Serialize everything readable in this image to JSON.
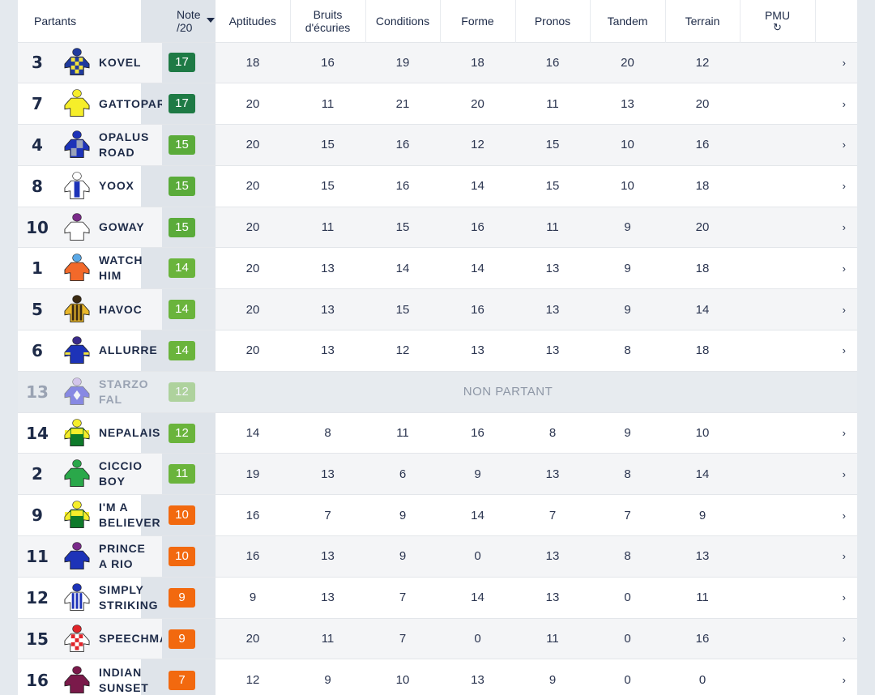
{
  "headers": {
    "partants": "Partants",
    "note_line1": "Note",
    "note_line2": "/20",
    "aptitudes": "Aptitudes",
    "bruits_line1": "Bruits",
    "bruits_line2": "d'écuries",
    "conditions": "Conditions",
    "forme": "Forme",
    "pronos": "Pronos",
    "tandem": "Tandem",
    "terrain": "Terrain",
    "pmu": "PMU"
  },
  "colors": {
    "note_17": "#1e7a45",
    "note_15": "#5aab3a",
    "note_12": "#6ab43c",
    "note_10": "#f2690f",
    "note_7": "#f2690f",
    "note_bg_col": "#dfe4ea"
  },
  "non_partant_label": "NON PARTANT",
  "runners": [
    {
      "num": "3",
      "name1": "KOVEL",
      "name2": "",
      "note": "17",
      "note_color": "#1e7a45",
      "silk": {
        "body": "#1f3a9e",
        "pattern": "check",
        "alt": "#f3e43a",
        "cap": "#1f3a9e"
      },
      "scores": [
        "18",
        "16",
        "19",
        "18",
        "16",
        "20",
        "12"
      ]
    },
    {
      "num": "7",
      "name1": "GATTOPARDO",
      "name2": "",
      "note": "17",
      "note_color": "#1e7a45",
      "silk": {
        "body": "#f6ee2a",
        "pattern": "plain",
        "alt": "#f6ee2a",
        "cap": "#f6ee2a"
      },
      "scores": [
        "20",
        "11",
        "21",
        "20",
        "11",
        "13",
        "20"
      ]
    },
    {
      "num": "4",
      "name1": "OPALUS",
      "name2": "ROAD",
      "note": "15",
      "note_color": "#5aab3a",
      "silk": {
        "body": "#1d33b8",
        "pattern": "quarter",
        "alt": "#9aa3b8",
        "cap": "#1d33b8"
      },
      "scores": [
        "20",
        "15",
        "16",
        "12",
        "15",
        "10",
        "16"
      ]
    },
    {
      "num": "8",
      "name1": "YOOX",
      "name2": "",
      "note": "15",
      "note_color": "#5aab3a",
      "silk": {
        "body": "#ffffff",
        "pattern": "centerstripe",
        "alt": "#1d33b8",
        "cap": "#ffffff"
      },
      "scores": [
        "20",
        "15",
        "16",
        "14",
        "15",
        "10",
        "18"
      ]
    },
    {
      "num": "10",
      "name1": "GOWAY",
      "name2": "",
      "note": "15",
      "note_color": "#5aab3a",
      "silk": {
        "body": "#ffffff",
        "pattern": "plain",
        "alt": "#ffffff",
        "cap": "#7a2a8a"
      },
      "scores": [
        "20",
        "11",
        "15",
        "16",
        "11",
        "9",
        "20"
      ]
    },
    {
      "num": "1",
      "name1": "WATCH",
      "name2": "HIM",
      "note": "14",
      "note_color": "#6ab43c",
      "silk": {
        "body": "#f2692a",
        "pattern": "plain",
        "alt": "#f2692a",
        "cap": "#5aa8e6"
      },
      "scores": [
        "20",
        "13",
        "14",
        "14",
        "13",
        "9",
        "18"
      ]
    },
    {
      "num": "5",
      "name1": "HAVOC",
      "name2": "",
      "note": "14",
      "note_color": "#6ab43c",
      "silk": {
        "body": "#e8b62a",
        "pattern": "vstripes",
        "alt": "#3a2a12",
        "cap": "#3a2a12"
      },
      "scores": [
        "20",
        "13",
        "15",
        "16",
        "13",
        "9",
        "14"
      ]
    },
    {
      "num": "6",
      "name1": "ALLURRE",
      "name2": "",
      "note": "14",
      "note_color": "#6ab43c",
      "silk": {
        "body": "#1d33b8",
        "pattern": "sleevehoop",
        "alt": "#f3e43a",
        "cap": "#3a2a8a"
      },
      "scores": [
        "20",
        "13",
        "12",
        "13",
        "13",
        "8",
        "18"
      ]
    },
    {
      "num": "13",
      "name1": "STARZO",
      "name2": "FAL",
      "note": "12",
      "note_color": "#6ab43c",
      "silk": {
        "body": "#2a2ad8",
        "pattern": "diamond",
        "alt": "#ffffff",
        "cap": "#c0a0e8"
      },
      "non_partant": true,
      "scores": []
    },
    {
      "num": "14",
      "name1": "NEPALAIS",
      "name2": "",
      "note": "12",
      "note_color": "#6ab43c",
      "silk": {
        "body": "#0e7a2a",
        "pattern": "yoke",
        "alt": "#f6ee2a",
        "cap": "#f6ee2a"
      },
      "scores": [
        "14",
        "8",
        "11",
        "16",
        "8",
        "9",
        "10"
      ]
    },
    {
      "num": "2",
      "name1": "CICCIO",
      "name2": "BOY",
      "note": "11",
      "note_color": "#6ab43c",
      "silk": {
        "body": "#2aa84a",
        "pattern": "plain",
        "alt": "#ffffff",
        "cap": "#2aa84a"
      },
      "scores": [
        "19",
        "13",
        "6",
        "9",
        "13",
        "8",
        "14"
      ]
    },
    {
      "num": "9",
      "name1": "I'M A",
      "name2": "BELIEVER",
      "note": "10",
      "note_color": "#f2690f",
      "silk": {
        "body": "#0e7a2a",
        "pattern": "yoke",
        "alt": "#f6ee2a",
        "cap": "#f6ee2a"
      },
      "scores": [
        "16",
        "7",
        "9",
        "14",
        "7",
        "7",
        "9"
      ]
    },
    {
      "num": "11",
      "name1": "PRINCE",
      "name2": "A RIO",
      "note": "10",
      "note_color": "#f2690f",
      "silk": {
        "body": "#1d33b8",
        "pattern": "plain",
        "alt": "#1d33b8",
        "cap": "#7a2a8a"
      },
      "scores": [
        "16",
        "13",
        "9",
        "0",
        "13",
        "8",
        "13"
      ]
    },
    {
      "num": "12",
      "name1": "SIMPLY",
      "name2": "STRIKING",
      "note": "9",
      "note_color": "#f2690f",
      "silk": {
        "body": "#ffffff",
        "pattern": "vstripes",
        "alt": "#1d33b8",
        "cap": "#1d33b8"
      },
      "scores": [
        "9",
        "13",
        "7",
        "14",
        "13",
        "0",
        "11"
      ]
    },
    {
      "num": "15",
      "name1": "SPEECHMAKER",
      "name2": "",
      "note": "9",
      "note_color": "#f2690f",
      "silk": {
        "body": "#ffffff",
        "pattern": "check",
        "alt": "#e0242a",
        "cap": "#e0242a"
      },
      "scores": [
        "20",
        "11",
        "7",
        "0",
        "11",
        "0",
        "16"
      ]
    },
    {
      "num": "16",
      "name1": "INDIAN",
      "name2": "SUNSET",
      "note": "7",
      "note_color": "#f2690f",
      "silk": {
        "body": "#7a1a4a",
        "pattern": "plain",
        "alt": "#7a1a4a",
        "cap": "#7a1a4a"
      },
      "scores": [
        "12",
        "9",
        "10",
        "13",
        "9",
        "0",
        "0"
      ]
    }
  ]
}
